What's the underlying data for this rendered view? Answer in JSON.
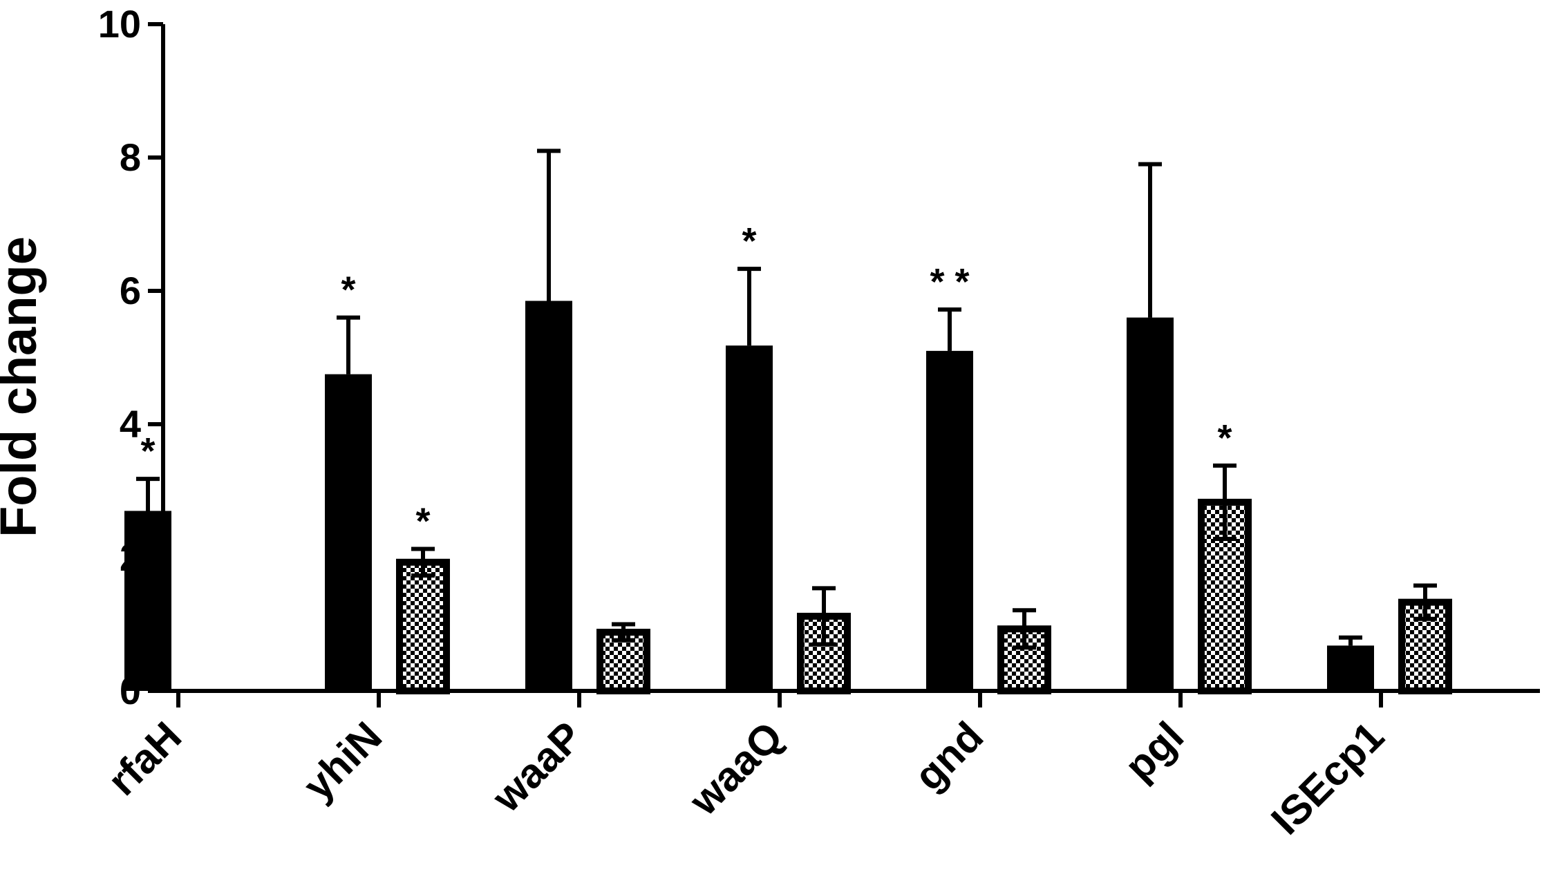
{
  "chart_data": {
    "type": "bar",
    "ylabel": "Fold change",
    "ylim": [
      0,
      10
    ],
    "yticks": [
      "0",
      "2",
      "4",
      "6",
      "8",
      "10"
    ],
    "categories": [
      "rfaH",
      "yhiN",
      "waaP",
      "waaQ",
      "gnd",
      "pgl",
      "ISEcp1"
    ],
    "series": [
      {
        "fill": "solid",
        "values": [
          2.7,
          4.75,
          5.85,
          5.18,
          5.1,
          5.6,
          0.68
        ],
        "errors": [
          0.48,
          0.85,
          2.25,
          1.15,
          0.62,
          2.3,
          0.12
        ],
        "significance": [
          "*",
          "*",
          "",
          "*",
          "**",
          "",
          ""
        ]
      },
      {
        "fill": "checkered",
        "values": [
          null,
          1.93,
          0.88,
          1.12,
          0.93,
          2.83,
          1.33
        ],
        "errors": [
          null,
          0.2,
          0.12,
          0.42,
          0.28,
          0.55,
          0.25
        ],
        "significance": [
          "",
          "*",
          "",
          "",
          "",
          "*",
          ""
        ]
      }
    ],
    "colors": {
      "bar": "#000000",
      "pattern_light": "#ffffff",
      "axis": "#000000"
    },
    "grid": false,
    "legend": "none"
  }
}
